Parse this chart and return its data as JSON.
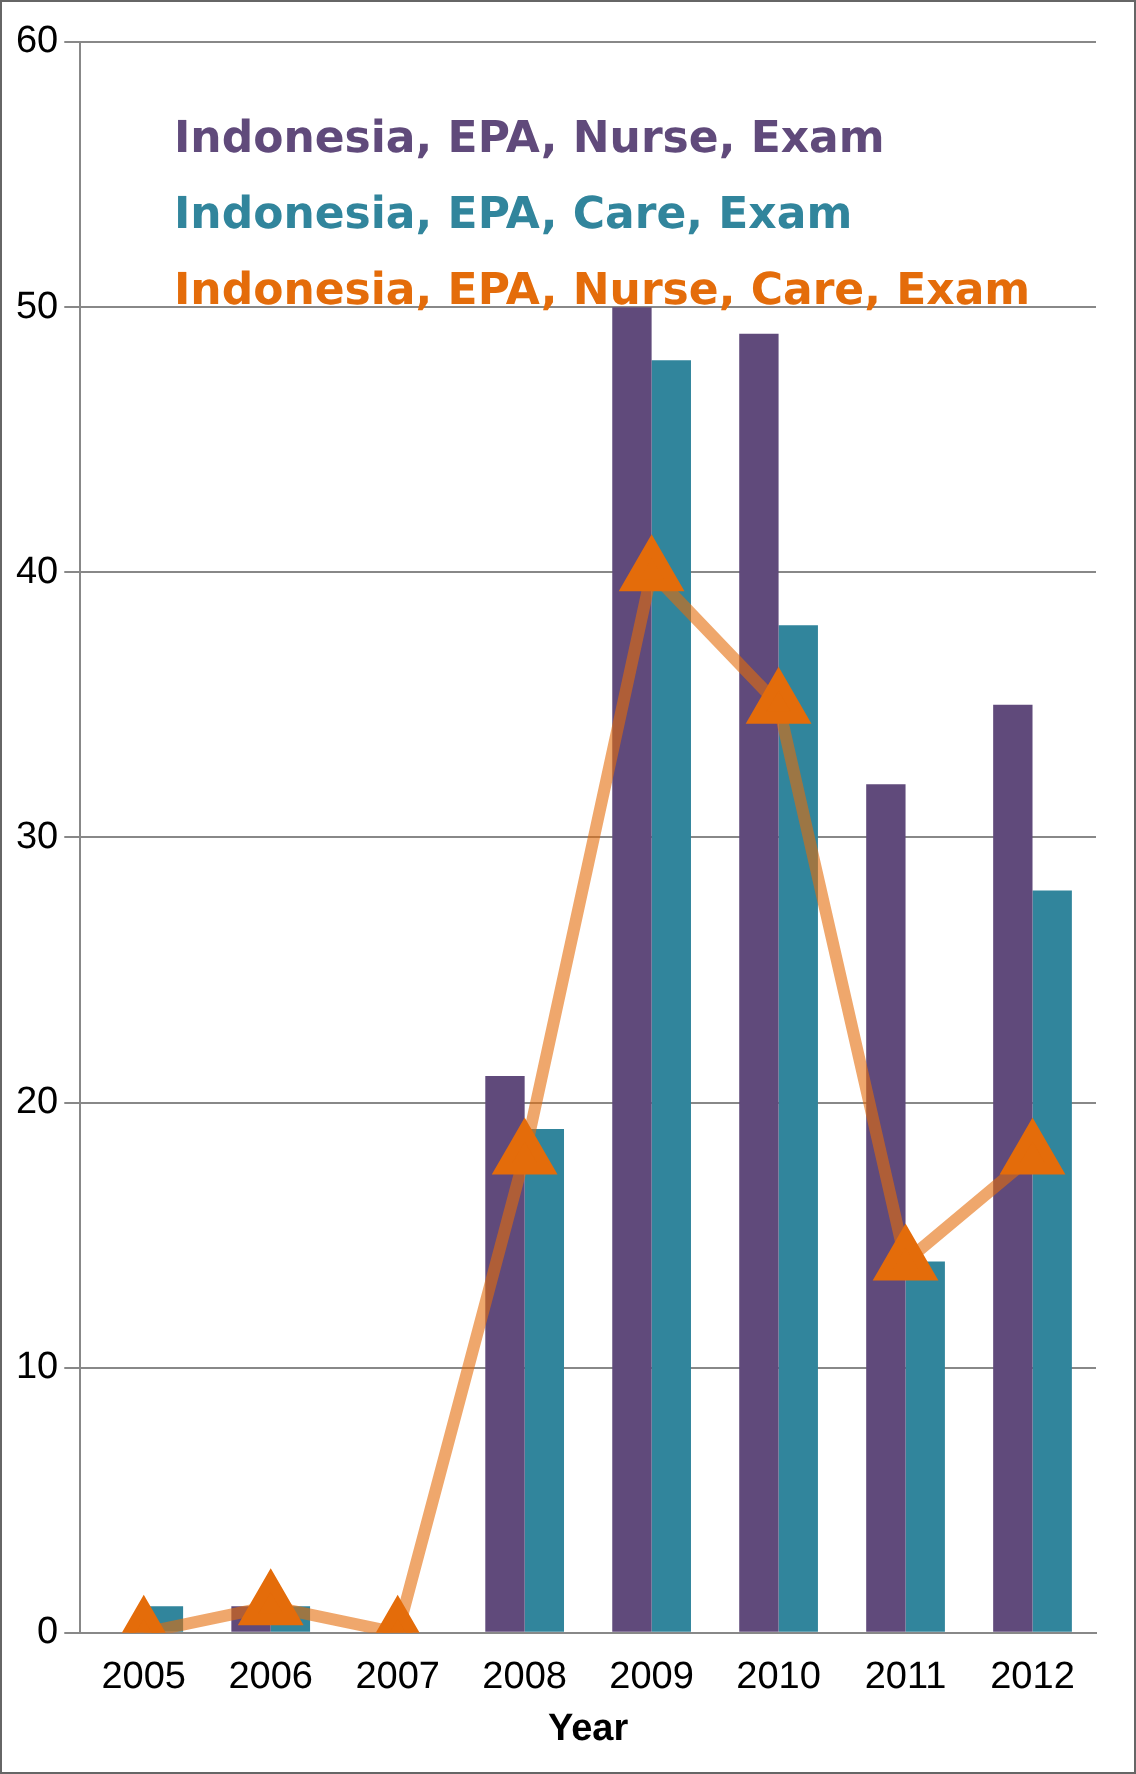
{
  "chart_data": {
    "type": "bar",
    "xlabel": "Year",
    "categories": [
      "2005",
      "2006",
      "2007",
      "2008",
      "2009",
      "2010",
      "2011",
      "2012"
    ],
    "series": [
      {
        "name": "Indonesia, EPA, Nurse, Exam",
        "color": "#604a7b",
        "values": [
          0,
          1,
          0,
          21,
          50,
          49,
          32,
          35
        ]
      },
      {
        "name": "Indonesia, EPA, Care, Exam",
        "color": "#31859c",
        "values": [
          1,
          1,
          0,
          19,
          48,
          38,
          14,
          28
        ]
      },
      {
        "name": "Indonesia, EPA, Nurse, Care, Exam",
        "color": "#e46c0a",
        "type": "line",
        "marker": "triangle",
        "values": [
          0,
          1,
          0,
          18,
          40,
          35,
          14,
          18
        ]
      }
    ],
    "ylim": [
      0,
      60
    ],
    "yticks": [
      0,
      10,
      20,
      30,
      40,
      50,
      60
    ],
    "grid": "y",
    "legend": "top left"
  }
}
